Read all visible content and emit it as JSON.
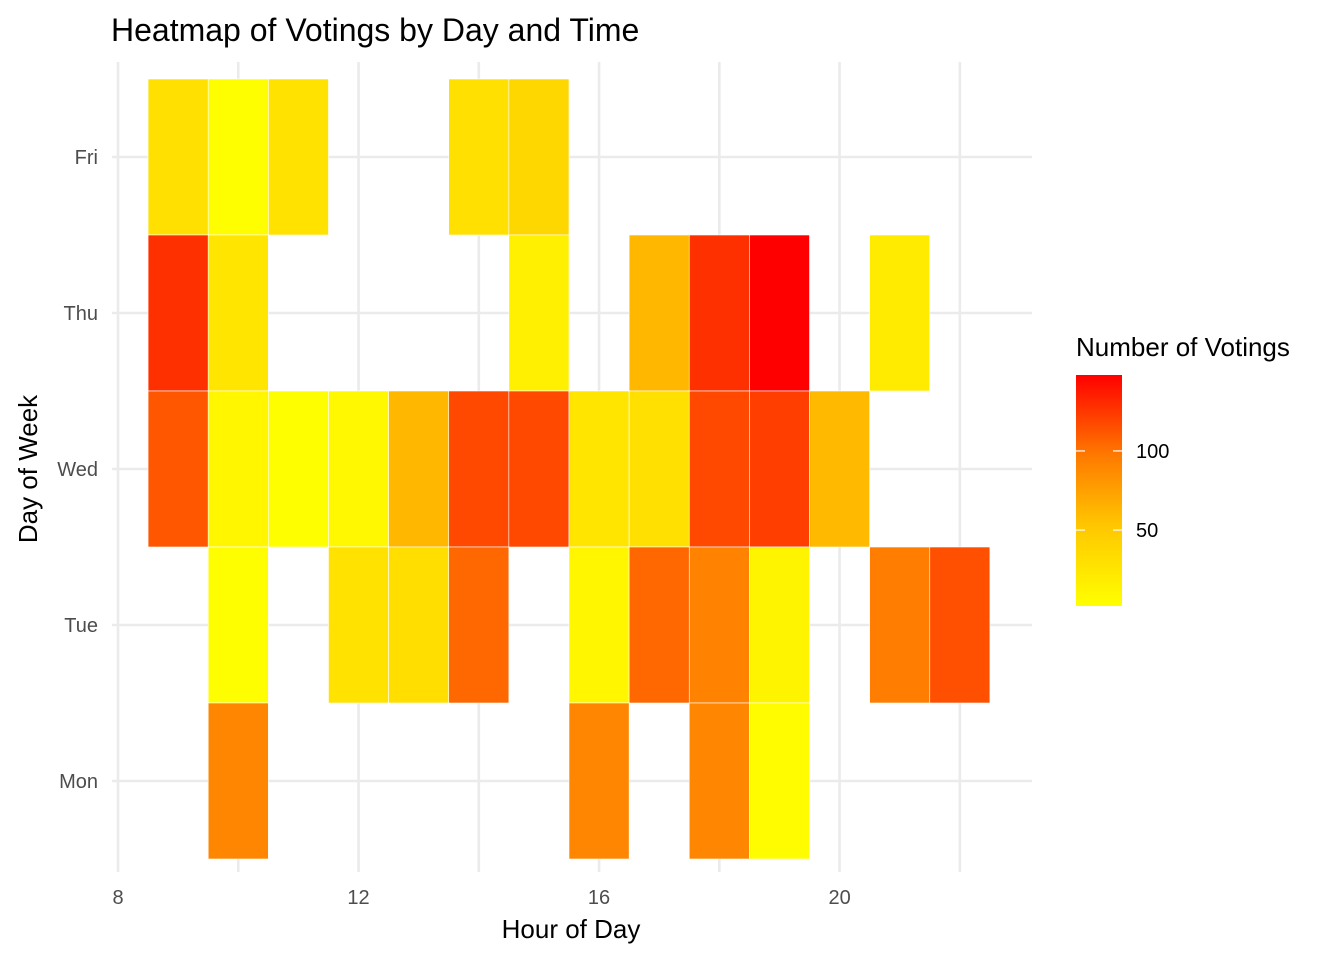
{
  "chart_data": {
    "type": "heatmap",
    "title": "Heatmap of Votings by Day and Time",
    "xlabel": "Hour of Day",
    "ylabel": "Day of Week",
    "x_ticks": [
      8,
      12,
      16,
      20
    ],
    "xlim": [
      7.9,
      23.2
    ],
    "y_categories": [
      "Mon",
      "Tue",
      "Wed",
      "Thu",
      "Fri"
    ],
    "grid": true,
    "legend": {
      "title": "Number of Votings",
      "position": "right",
      "ticks": [
        50,
        100
      ],
      "range": [
        2,
        148
      ],
      "low_color": "#ffff00",
      "high_color": "#ff0000"
    },
    "cells": [
      {
        "day": "Fri",
        "hour": 9,
        "value": 30
      },
      {
        "day": "Fri",
        "hour": 10,
        "value": 3
      },
      {
        "day": "Fri",
        "hour": 11,
        "value": 28
      },
      {
        "day": "Fri",
        "hour": 14,
        "value": 30
      },
      {
        "day": "Fri",
        "hour": 15,
        "value": 38
      },
      {
        "day": "Thu",
        "hour": 9,
        "value": 128
      },
      {
        "day": "Thu",
        "hour": 10,
        "value": 25
      },
      {
        "day": "Thu",
        "hour": 15,
        "value": 16
      },
      {
        "day": "Thu",
        "hour": 17,
        "value": 62
      },
      {
        "day": "Thu",
        "hour": 18,
        "value": 128
      },
      {
        "day": "Thu",
        "hour": 19,
        "value": 148
      },
      {
        "day": "Thu",
        "hour": 21,
        "value": 20
      },
      {
        "day": "Wed",
        "hour": 9,
        "value": 112
      },
      {
        "day": "Wed",
        "hour": 10,
        "value": 10
      },
      {
        "day": "Wed",
        "hour": 11,
        "value": 3
      },
      {
        "day": "Wed",
        "hour": 12,
        "value": 8
      },
      {
        "day": "Wed",
        "hour": 13,
        "value": 62
      },
      {
        "day": "Wed",
        "hour": 14,
        "value": 118
      },
      {
        "day": "Wed",
        "hour": 15,
        "value": 118
      },
      {
        "day": "Wed",
        "hour": 16,
        "value": 25
      },
      {
        "day": "Wed",
        "hour": 17,
        "value": 30
      },
      {
        "day": "Wed",
        "hour": 18,
        "value": 118
      },
      {
        "day": "Wed",
        "hour": 19,
        "value": 122
      },
      {
        "day": "Wed",
        "hour": 20,
        "value": 60
      },
      {
        "day": "Tue",
        "hour": 10,
        "value": 3
      },
      {
        "day": "Tue",
        "hour": 12,
        "value": 28
      },
      {
        "day": "Tue",
        "hour": 13,
        "value": 32
      },
      {
        "day": "Tue",
        "hour": 14,
        "value": 105
      },
      {
        "day": "Tue",
        "hour": 16,
        "value": 10
      },
      {
        "day": "Tue",
        "hour": 17,
        "value": 105
      },
      {
        "day": "Tue",
        "hour": 18,
        "value": 92
      },
      {
        "day": "Tue",
        "hour": 19,
        "value": 12
      },
      {
        "day": "Tue",
        "hour": 21,
        "value": 95
      },
      {
        "day": "Tue",
        "hour": 22,
        "value": 115
      },
      {
        "day": "Mon",
        "hour": 10,
        "value": 90
      },
      {
        "day": "Mon",
        "hour": 16,
        "value": 90
      },
      {
        "day": "Mon",
        "hour": 18,
        "value": 90
      },
      {
        "day": "Mon",
        "hour": 19,
        "value": 5
      }
    ]
  }
}
